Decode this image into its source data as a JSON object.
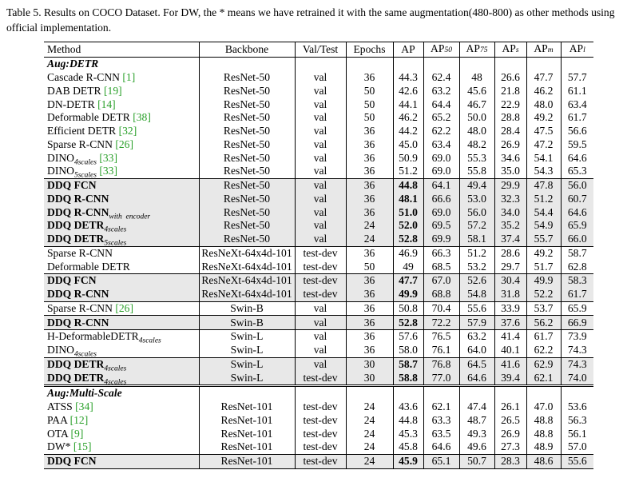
{
  "caption": "Table 5.  Results on COCO Dataset.  For DW, the * means we have retrained it with the same augmentation(480-800) as other methods using official implementation.",
  "header": {
    "method": "Method",
    "backbone": "Backbone",
    "valtest": "Val/Test",
    "epochs": "Epochs",
    "ap": "AP",
    "ap50": "AP",
    "ap50_sub": "50",
    "ap75": "AP",
    "ap75_sub": "75",
    "aps": "AP",
    "aps_sub": "s",
    "apm": "AP",
    "apm_sub": "m",
    "apl": "AP",
    "apl_sub": "l"
  },
  "sections": [
    {
      "title": "Aug:DETR",
      "groups": [
        {
          "rows": [
            {
              "name": "Cascade R-CNN",
              "cite": "[1]",
              "backbone": "ResNet-50",
              "split": "val",
              "epochs": "36",
              "ap": "44.3",
              "ap50": "62.4",
              "ap75": "48",
              "aps": "26.6",
              "apm": "47.7",
              "apl": "57.7"
            },
            {
              "name": "DAB DETR",
              "cite": "[19]",
              "backbone": "ResNet-50",
              "split": "val",
              "epochs": "50",
              "ap": "42.6",
              "ap50": "63.2",
              "ap75": "45.6",
              "aps": "21.8",
              "apm": "46.2",
              "apl": "61.1"
            },
            {
              "name": "DN-DETR",
              "cite": "[14]",
              "backbone": "ResNet-50",
              "split": "val",
              "epochs": "50",
              "ap": "44.1",
              "ap50": "64.4",
              "ap75": "46.7",
              "aps": "22.9",
              "apm": "48.0",
              "apl": "63.4"
            },
            {
              "name": "Deformable DETR",
              "cite": "[38]",
              "backbone": "ResNet-50",
              "split": "val",
              "epochs": "50",
              "ap": "46.2",
              "ap50": "65.2",
              "ap75": "50.0",
              "aps": "28.8",
              "apm": "49.2",
              "apl": "61.7"
            },
            {
              "name": "Efficient DETR",
              "cite": "[32]",
              "backbone": "ResNet-50",
              "split": "val",
              "epochs": "36",
              "ap": "44.2",
              "ap50": "62.2",
              "ap75": "48.0",
              "aps": "28.4",
              "apm": "47.5",
              "apl": "56.6"
            },
            {
              "name": "Sparse R-CNN",
              "cite": "[26]",
              "backbone": "ResNet-50",
              "split": "val",
              "epochs": "36",
              "ap": "45.0",
              "ap50": "63.4",
              "ap75": "48.2",
              "aps": "26.9",
              "apm": "47.2",
              "apl": "59.5"
            },
            {
              "name": "DINO",
              "sub": "4scales",
              "cite": "[33]",
              "backbone": "ResNet-50",
              "split": "val",
              "epochs": "36",
              "ap": "50.9",
              "ap50": "69.0",
              "ap75": "55.3",
              "aps": "34.6",
              "apm": "54.1",
              "apl": "64.6"
            },
            {
              "name": "DINO",
              "sub": "5scales",
              "cite": "[33]",
              "backbone": "ResNet-50",
              "split": "val",
              "epochs": "36",
              "ap": "51.2",
              "ap50": "69.0",
              "ap75": "55.8",
              "aps": "35.0",
              "apm": "54.3",
              "apl": "65.3"
            }
          ]
        },
        {
          "shade": true,
          "rows": [
            {
              "name": "DDQ FCN",
              "backbone": "ResNet-50",
              "split": "val",
              "epochs": "36",
              "ap": "44.8",
              "ap50": "64.1",
              "ap75": "49.4",
              "aps": "29.9",
              "apm": "47.8",
              "apl": "56.0"
            },
            {
              "name": "DDQ R-CNN",
              "backbone": "ResNet-50",
              "split": "val",
              "epochs": "36",
              "ap": "48.1",
              "ap50": "66.6",
              "ap75": "53.0",
              "aps": "32.3",
              "apm": "51.2",
              "apl": "60.7"
            },
            {
              "name": "DDQ R-CNN",
              "sub": "with_encoder",
              "backbone": "ResNet-50",
              "split": "val",
              "epochs": "36",
              "ap": "51.0",
              "ap50": "69.0",
              "ap75": "56.0",
              "aps": "34.0",
              "apm": "54.4",
              "apl": "64.6"
            },
            {
              "name": "DDQ DETR",
              "sub": "4scales",
              "backbone": "ResNet-50",
              "split": "val",
              "epochs": "24",
              "ap": "52.0",
              "ap50": "69.5",
              "ap75": "57.2",
              "aps": "35.2",
              "apm": "54.9",
              "apl": "65.9"
            },
            {
              "name": "DDQ DETR",
              "sub": "5scales",
              "backbone": "ResNet-50",
              "split": "val",
              "epochs": "24",
              "ap": "52.8",
              "ap50": "69.9",
              "ap75": "58.1",
              "aps": "37.4",
              "apm": "55.7",
              "apl": "66.0"
            }
          ]
        },
        {
          "rows": [
            {
              "name": "Sparse R-CNN",
              "backbone": "ResNeXt-64x4d-101",
              "split": "test-dev",
              "epochs": "36",
              "ap": "46.9",
              "ap50": "66.3",
              "ap75": "51.2",
              "aps": "28.6",
              "apm": "49.2",
              "apl": "58.7"
            },
            {
              "name": "Deformable DETR",
              "backbone": "ResNeXt-64x4d-101",
              "split": "test-dev",
              "epochs": "50",
              "ap": "49",
              "ap50": "68.5",
              "ap75": "53.2",
              "aps": "29.7",
              "apm": "51.7",
              "apl": "62.8"
            }
          ]
        },
        {
          "shade": true,
          "rows": [
            {
              "name": "DDQ FCN",
              "backbone": "ResNeXt-64x4d-101",
              "split": "test-dev",
              "epochs": "36",
              "ap": "47.7",
              "ap50": "67.0",
              "ap75": "52.6",
              "aps": "30.4",
              "apm": "49.9",
              "apl": "58.3"
            },
            {
              "name": "DDQ R-CNN",
              "backbone": "ResNeXt-64x4d-101",
              "split": "test-dev",
              "epochs": "36",
              "ap": "49.9",
              "ap50": "68.8",
              "ap75": "54.8",
              "aps": "31.8",
              "apm": "52.2",
              "apl": "61.7"
            }
          ]
        },
        {
          "rows": [
            {
              "name": "Sparse R-CNN",
              "cite": "[26]",
              "backbone": "Swin-B",
              "split": "val",
              "epochs": "36",
              "ap": "50.8",
              "ap50": "70.4",
              "ap75": "55.6",
              "aps": "33.9",
              "apm": "53.7",
              "apl": "65.9"
            }
          ]
        },
        {
          "shade": true,
          "rows": [
            {
              "name": "DDQ R-CNN",
              "backbone": "Swin-B",
              "split": "val",
              "epochs": "36",
              "ap": "52.8",
              "ap50": "72.2",
              "ap75": "57.9",
              "aps": "37.6",
              "apm": "56.2",
              "apl": "66.9"
            }
          ]
        },
        {
          "rows": [
            {
              "name": "H-DeformableDETR",
              "sub": "4scales",
              "backbone": "Swin-L",
              "split": "val",
              "epochs": "36",
              "ap": "57.6",
              "ap50": "76.5",
              "ap75": "63.2",
              "aps": "41.4",
              "apm": "61.7",
              "apl": "73.9"
            },
            {
              "name": "DINO",
              "sub": "4scales",
              "backbone": "Swin-L",
              "split": "val",
              "epochs": "36",
              "ap": "58.0",
              "ap50": "76.1",
              "ap75": "64.0",
              "aps": "40.1",
              "apm": "62.2",
              "apl": "74.3"
            }
          ]
        },
        {
          "shade": true,
          "rows": [
            {
              "name": "DDQ DETR",
              "sub": "4scales",
              "backbone": "Swin-L",
              "split": "val",
              "epochs": "30",
              "ap": "58.7",
              "ap50": "76.8",
              "ap75": "64.5",
              "aps": "41.6",
              "apm": "62.9",
              "apl": "74.3"
            },
            {
              "name": "DDQ DETR",
              "sub": "4scales",
              "backbone": "Swin-L",
              "split": "test-dev",
              "epochs": "30",
              "ap": "58.8",
              "ap50": "77.0",
              "ap75": "64.6",
              "aps": "39.4",
              "apm": "62.1",
              "apl": "74.0"
            }
          ]
        }
      ]
    },
    {
      "title": "Aug:Multi-Scale",
      "groups": [
        {
          "rows": [
            {
              "name": "ATSS",
              "cite": "[34]",
              "backbone": "ResNet-101",
              "split": "test-dev",
              "epochs": "24",
              "ap": "43.6",
              "ap50": "62.1",
              "ap75": "47.4",
              "aps": "26.1",
              "apm": "47.0",
              "apl": "53.6"
            },
            {
              "name": "PAA",
              "cite": "[12]",
              "backbone": "ResNet-101",
              "split": "test-dev",
              "epochs": "24",
              "ap": "44.8",
              "ap50": "63.3",
              "ap75": "48.7",
              "aps": "26.5",
              "apm": "48.8",
              "apl": "56.3"
            },
            {
              "name": "OTA",
              "cite": "[9]",
              "backbone": "ResNet-101",
              "split": "test-dev",
              "epochs": "24",
              "ap": "45.3",
              "ap50": "63.5",
              "ap75": "49.3",
              "aps": "26.9",
              "apm": "48.8",
              "apl": "56.1"
            },
            {
              "name": "DW*",
              "cite": "[15]",
              "backbone": "ResNet-101",
              "split": "test-dev",
              "epochs": "24",
              "ap": "45.8",
              "ap50": "64.6",
              "ap75": "49.6",
              "aps": "27.3",
              "apm": "48.9",
              "apl": "57.0"
            }
          ]
        },
        {
          "shade": true,
          "rows": [
            {
              "name": "DDQ FCN",
              "backbone": "ResNet-101",
              "split": "test-dev",
              "epochs": "24",
              "ap": "45.9",
              "ap50": "65.1",
              "ap75": "50.7",
              "aps": "28.3",
              "apm": "48.6",
              "apl": "55.6"
            }
          ]
        }
      ]
    }
  ]
}
